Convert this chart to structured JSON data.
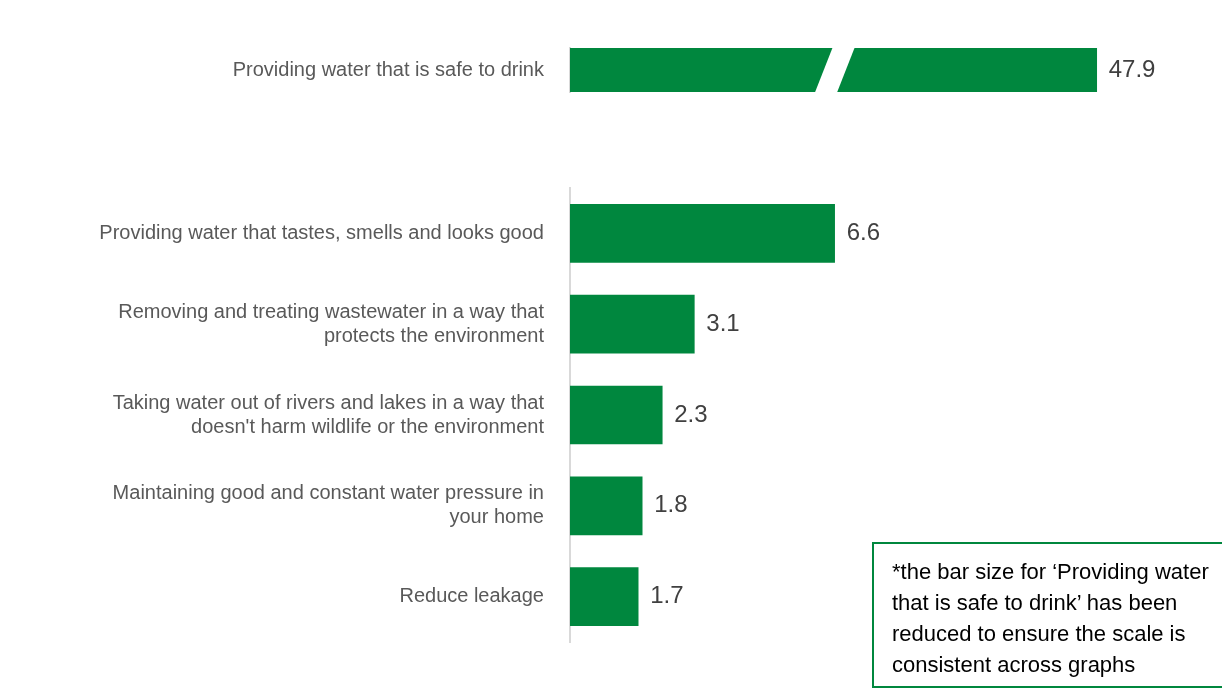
{
  "chart_data": [
    {
      "type": "bar",
      "orientation": "horizontal",
      "categories": [
        "Providing water that is safe to drink"
      ],
      "values": [
        47.9
      ],
      "color": "#00873e",
      "data_labels": true
    },
    {
      "type": "bar",
      "orientation": "horizontal",
      "categories": [
        "Providing water that tastes, smells and looks good",
        "Removing and treating wastewater in a way that protects the environment",
        "Taking water out of rivers and lakes in a way that doesn't harm wildlife or the environment",
        "Maintaining good and constant water pressure in your home",
        "Reduce leakage"
      ],
      "values": [
        6.6,
        3.1,
        2.3,
        1.8,
        1.7
      ],
      "color": "#00873e",
      "data_labels": true,
      "annotations": [
        "*the bar size for ‘Providing water that is safe to drink’ has been reduced to ensure the scale is consistent across graphs"
      ]
    }
  ]
}
